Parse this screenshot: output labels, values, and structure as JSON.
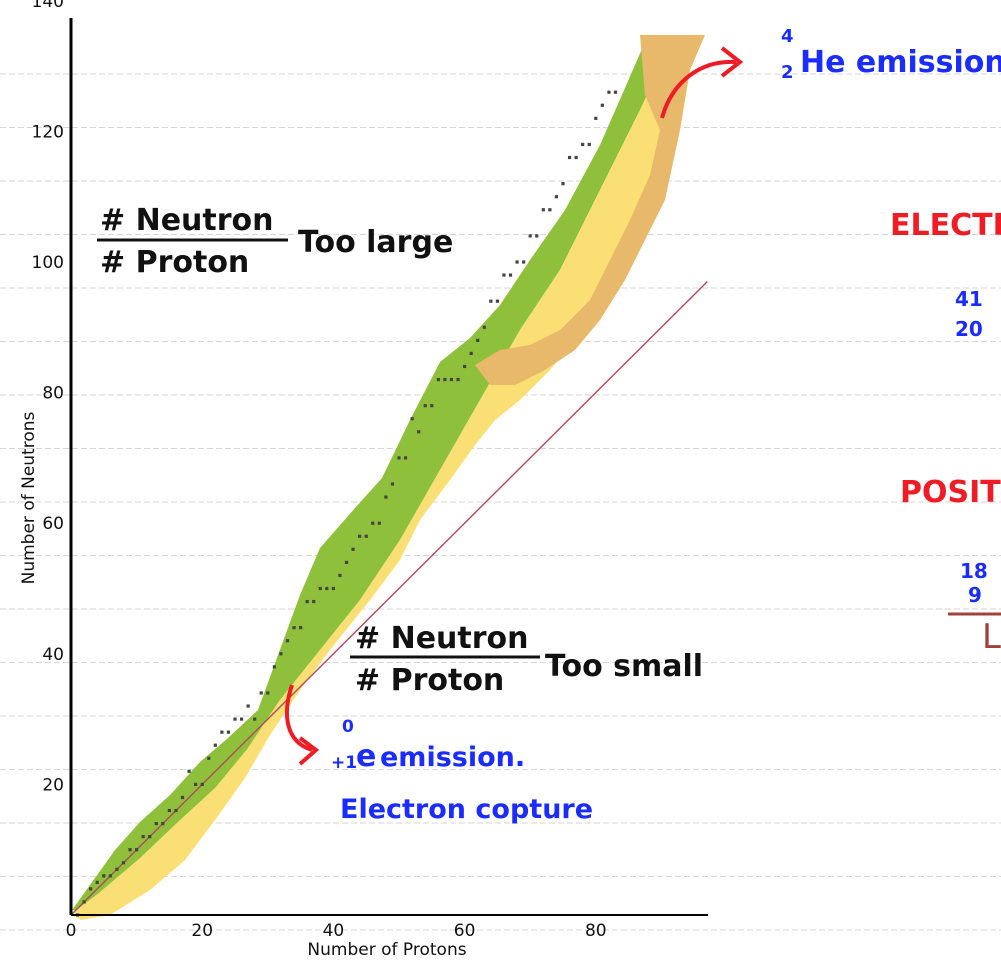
{
  "chart_data": {
    "type": "scatter",
    "xlabel": "Number of Protons",
    "ylabel": "Number of Neutrons",
    "xlim": [
      0,
      97
    ],
    "ylim": [
      0,
      142
    ],
    "xticks": [
      0,
      20,
      40,
      60,
      80
    ],
    "yticks": [
      20,
      40,
      60,
      80,
      100,
      120,
      140
    ],
    "grid": "horizontal notebook ruled lines",
    "reference_line": {
      "from": [
        0,
        0
      ],
      "to": [
        97,
        97
      ]
    },
    "stable_nuclei_points": [
      [
        1,
        0
      ],
      [
        2,
        2
      ],
      [
        3,
        4
      ],
      [
        4,
        5
      ],
      [
        5,
        6
      ],
      [
        6,
        6
      ],
      [
        7,
        7
      ],
      [
        8,
        8
      ],
      [
        9,
        10
      ],
      [
        10,
        10
      ],
      [
        11,
        12
      ],
      [
        12,
        12
      ],
      [
        13,
        14
      ],
      [
        14,
        14
      ],
      [
        15,
        16
      ],
      [
        16,
        16
      ],
      [
        17,
        18
      ],
      [
        18,
        22
      ],
      [
        19,
        20
      ],
      [
        20,
        20
      ],
      [
        21,
        24
      ],
      [
        22,
        26
      ],
      [
        23,
        28
      ],
      [
        24,
        28
      ],
      [
        25,
        30
      ],
      [
        26,
        30
      ],
      [
        27,
        32
      ],
      [
        28,
        30
      ],
      [
        29,
        34
      ],
      [
        30,
        34
      ],
      [
        31,
        38
      ],
      [
        32,
        40
      ],
      [
        33,
        42
      ],
      [
        34,
        44
      ],
      [
        35,
        44
      ],
      [
        36,
        48
      ],
      [
        37,
        48
      ],
      [
        38,
        50
      ],
      [
        39,
        50
      ],
      [
        40,
        50
      ],
      [
        41,
        52
      ],
      [
        42,
        54
      ],
      [
        43,
        56
      ],
      [
        44,
        58
      ],
      [
        45,
        58
      ],
      [
        46,
        60
      ],
      [
        47,
        60
      ],
      [
        48,
        64
      ],
      [
        49,
        66
      ],
      [
        50,
        70
      ],
      [
        51,
        70
      ],
      [
        52,
        76
      ],
      [
        53,
        74
      ],
      [
        54,
        78
      ],
      [
        55,
        78
      ],
      [
        56,
        82
      ],
      [
        57,
        82
      ],
      [
        58,
        82
      ],
      [
        59,
        82
      ],
      [
        60,
        84
      ],
      [
        61,
        86
      ],
      [
        62,
        88
      ],
      [
        63,
        90
      ],
      [
        64,
        94
      ],
      [
        65,
        94
      ],
      [
        66,
        98
      ],
      [
        67,
        98
      ],
      [
        68,
        100
      ],
      [
        69,
        100
      ],
      [
        70,
        104
      ],
      [
        71,
        104
      ],
      [
        72,
        108
      ],
      [
        73,
        108
      ],
      [
        74,
        110
      ],
      [
        75,
        112
      ],
      [
        76,
        116
      ],
      [
        77,
        116
      ],
      [
        78,
        118
      ],
      [
        79,
        118
      ],
      [
        80,
        122
      ],
      [
        81,
        124
      ],
      [
        82,
        126
      ],
      [
        83,
        126
      ]
    ],
    "regions": [
      {
        "name": "beta emission zone",
        "color": "#8fc03c"
      },
      {
        "name": "positron emission / electron capture zone",
        "color": "#fadf75"
      },
      {
        "name": "alpha emission zone",
        "color": "#e9b96b"
      }
    ]
  },
  "annotations": {
    "upper_ratio": {
      "numerator": "# Neutron",
      "denominator": "# Proton",
      "suffix": "Too large"
    },
    "lower_ratio": {
      "numerator": "# Neutron",
      "denominator": "# Proton",
      "suffix": "Too small"
    },
    "alpha_label": {
      "mass": "4",
      "charge": "2",
      "text": "He emission"
    },
    "positron_label": {
      "charge": "+1",
      "mass": "0",
      "symbol": "e",
      "text": "emission."
    },
    "capture_label": "Electron copture",
    "right_electron": "ELECTRO",
    "right_positron": "POSITRO",
    "ca_mass": "41",
    "ca_number": "20",
    "f_mass": "18",
    "f_number": "9",
    "cut_glyph": "L"
  },
  "colors": {
    "hand_blue": "#1a2cff",
    "hand_red": "#ee1c24",
    "reference_line": "#b24a5a",
    "ruled_line": "#d6d6d6",
    "cut_brown": "#a0423a"
  }
}
